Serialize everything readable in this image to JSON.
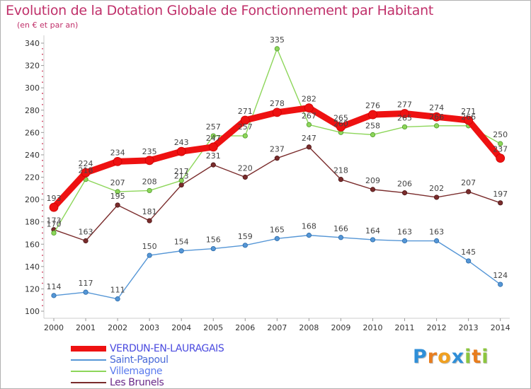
{
  "chart_data": {
    "type": "line",
    "title": "Evolution de la Dotation Globale de Fonctionnement par Habitant",
    "subtitle": "(en € et par an)",
    "x": [
      "2000",
      "2001",
      "2002",
      "2003",
      "2004",
      "2005",
      "2006",
      "2007",
      "2008",
      "2009",
      "2010",
      "2011",
      "2012",
      "2013",
      "2014"
    ],
    "yticks": [
      100,
      120,
      140,
      160,
      180,
      200,
      220,
      240,
      260,
      280,
      300,
      320,
      340
    ],
    "ylim": [
      100,
      340
    ],
    "grid": false,
    "legend_position": "bottom-left",
    "series": [
      {
        "name": "VERDUN-EN-LAURAGAIS",
        "color": "#ee1111",
        "values": [
          193,
          224,
          234,
          235,
          243,
          247,
          271,
          278,
          282,
          265,
          276,
          277,
          274,
          271,
          237
        ]
      },
      {
        "name": "Saint-Papoul",
        "color": "#5596d6",
        "values": [
          114,
          117,
          111,
          150,
          154,
          156,
          159,
          165,
          168,
          166,
          164,
          163,
          163,
          145,
          124
        ]
      },
      {
        "name": "Villemagne",
        "color": "#8dd65a",
        "values": [
          170,
          218,
          207,
          208,
          217,
          257,
          257,
          335,
          267,
          260,
          258,
          265,
          266,
          266,
          250
        ]
      },
      {
        "name": "Les Brunels",
        "color": "#7a2c2c",
        "values": [
          173,
          163,
          195,
          181,
          213,
          231,
          220,
          237,
          247,
          218,
          209,
          206,
          202,
          207,
          197
        ]
      }
    ]
  },
  "branding": {
    "letters": [
      "P",
      "r",
      "o",
      "x",
      "i",
      "t",
      "i"
    ],
    "colors": [
      "#2f8fd8",
      "#e87d1e",
      "#f0a020",
      "#2f8fd8",
      "#8cc63f",
      "#e87d1e",
      "#8cc63f"
    ]
  }
}
